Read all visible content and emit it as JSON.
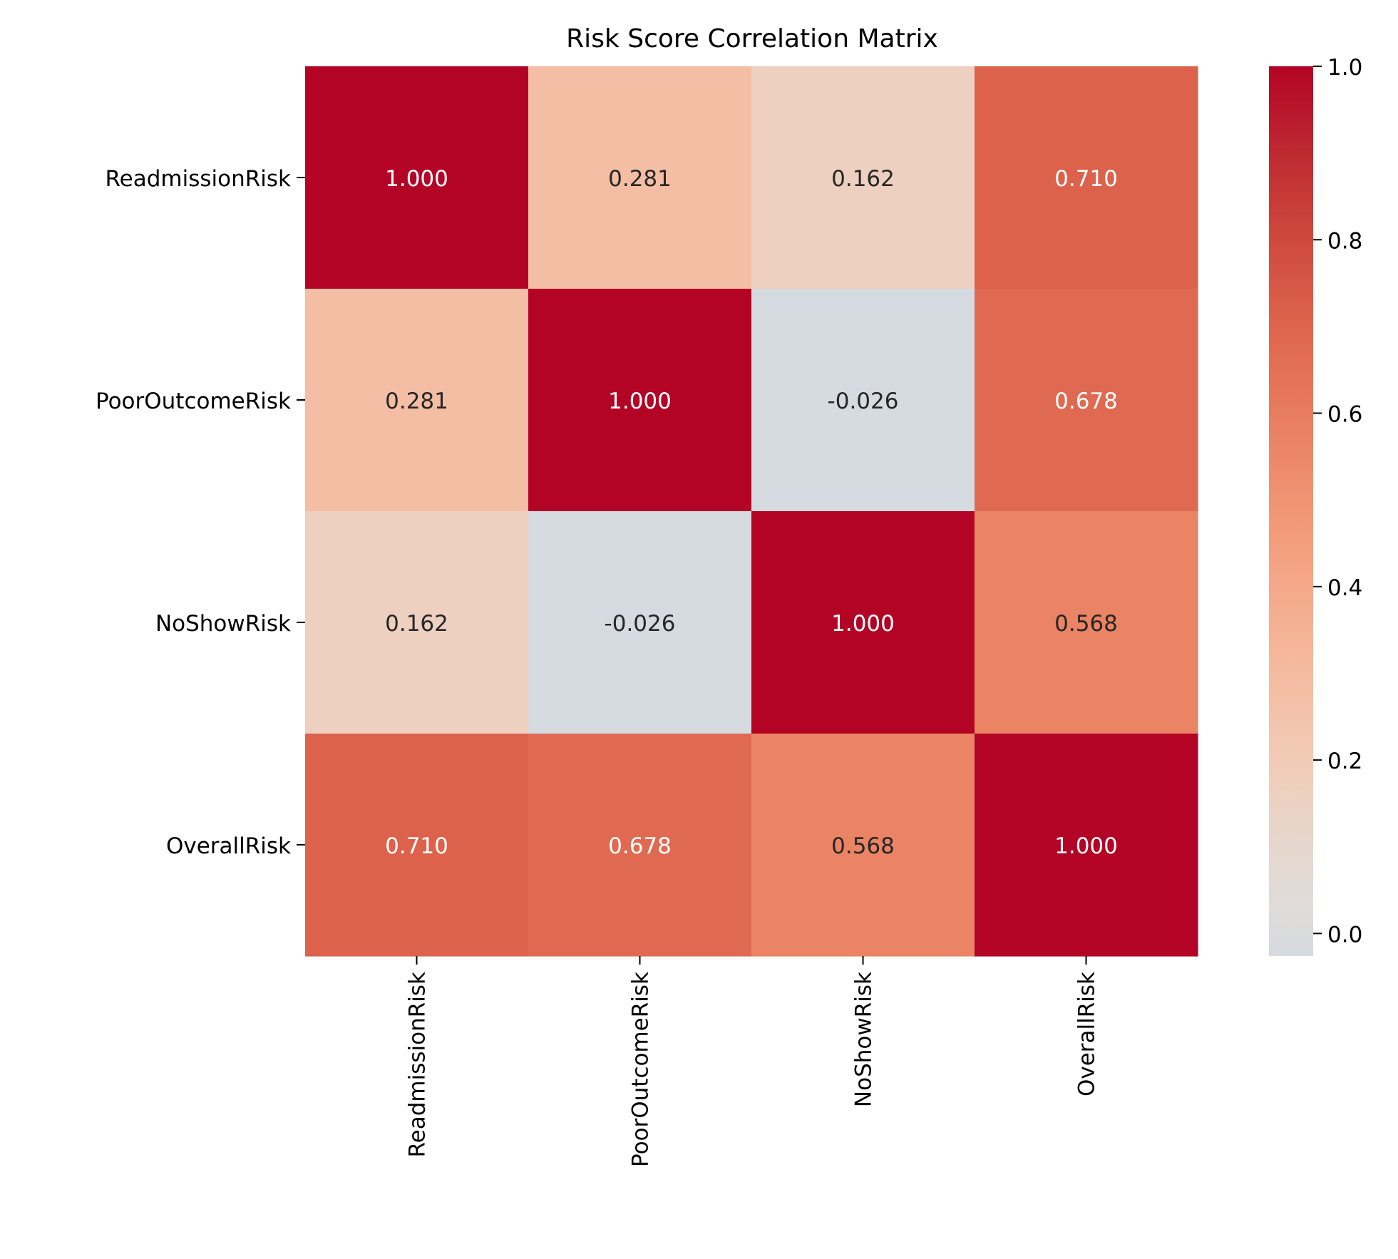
{
  "chart_data": {
    "type": "heatmap",
    "title": "Risk Score Correlation Matrix",
    "xlabel": "",
    "ylabel": "",
    "x_categories": [
      "ReadmissionRisk",
      "PoorOutcomeRisk",
      "NoShowRisk",
      "OverallRisk"
    ],
    "y_categories": [
      "ReadmissionRisk",
      "PoorOutcomeRisk",
      "NoShowRisk",
      "OverallRisk"
    ],
    "values": [
      [
        1.0,
        0.281,
        0.162,
        0.71
      ],
      [
        0.281,
        1.0,
        -0.026,
        0.678
      ],
      [
        0.162,
        -0.026,
        1.0,
        0.568
      ],
      [
        0.71,
        0.678,
        0.568,
        1.0
      ]
    ],
    "cell_labels": [
      [
        "1.000",
        "0.281",
        "0.162",
        "0.710"
      ],
      [
        "0.281",
        "1.000",
        "-0.026",
        "0.678"
      ],
      [
        "0.162",
        "-0.026",
        "1.000",
        "0.568"
      ],
      [
        "0.710",
        "0.678",
        "0.568",
        "1.000"
      ]
    ],
    "colormap": "coolwarm",
    "colorbar": {
      "range": [
        -0.026,
        1.0
      ],
      "ticks": [
        0.0,
        0.2,
        0.4,
        0.6,
        0.8,
        1.0
      ],
      "tick_labels": [
        "0.0",
        "0.2",
        "0.4",
        "0.6",
        "0.8",
        "1.0"
      ]
    },
    "grid": false
  }
}
